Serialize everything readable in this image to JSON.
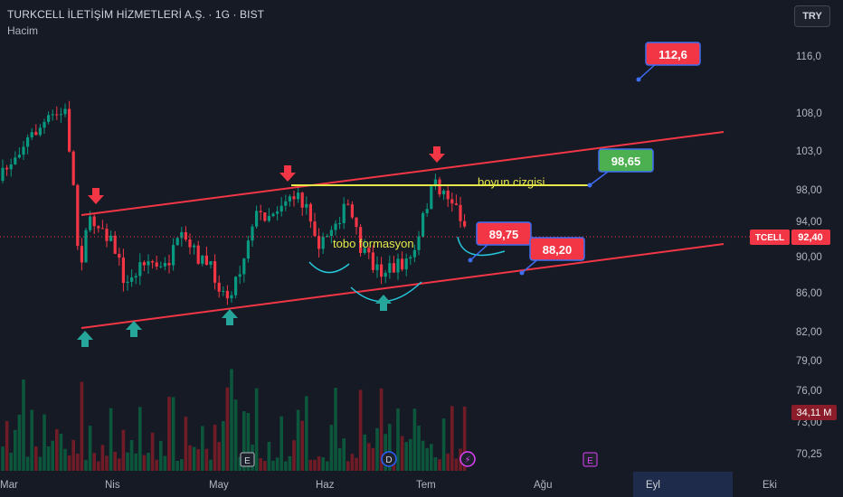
{
  "header": {
    "title": "TURKCELL İLETİŞİM HİZMETLERİ A.Ş. · 1G · BIST",
    "volume_label": "Hacim",
    "currency_button": "TRY"
  },
  "chart_data": {
    "type": "candlestick",
    "symbol": "TCELL",
    "price_axis": {
      "ticks": [
        "116,0",
        "108,0",
        "103,0",
        "98,00",
        "94,00",
        "90,00",
        "86,00",
        "82,00",
        "79,00",
        "76,00",
        "73,00",
        "70,25"
      ],
      "log_scale": true
    },
    "time_axis": {
      "labels": [
        "Mar",
        "Nis",
        "May",
        "Haz",
        "Tem",
        "Ağu",
        "Eyl",
        "Eki"
      ],
      "highlighted": "Eyl"
    },
    "last_price": {
      "symbol": "TCELL",
      "value": "92,40",
      "color": "#f23645"
    },
    "volume_badge": {
      "value": "34,11 M",
      "color": "#8b1d2a"
    },
    "event_markers": [
      "E",
      "D",
      "⚡",
      "E"
    ],
    "annotations": {
      "targets": [
        {
          "text": "112,6",
          "color": "#f23645"
        },
        {
          "text": "98,65",
          "color": "#4caf50"
        },
        {
          "text": "89,75",
          "color": "#f23645"
        },
        {
          "text": "88,20",
          "color": "#f23645"
        }
      ],
      "neckline_label": "boyun cizgisi",
      "pattern_label": "tobo formasyon"
    },
    "colors": {
      "up": "#089981",
      "down": "#f23645",
      "channel": "#f23645",
      "neckline": "#e6e84a",
      "arc": "#26c6da"
    },
    "grid": false,
    "legend": "none"
  }
}
